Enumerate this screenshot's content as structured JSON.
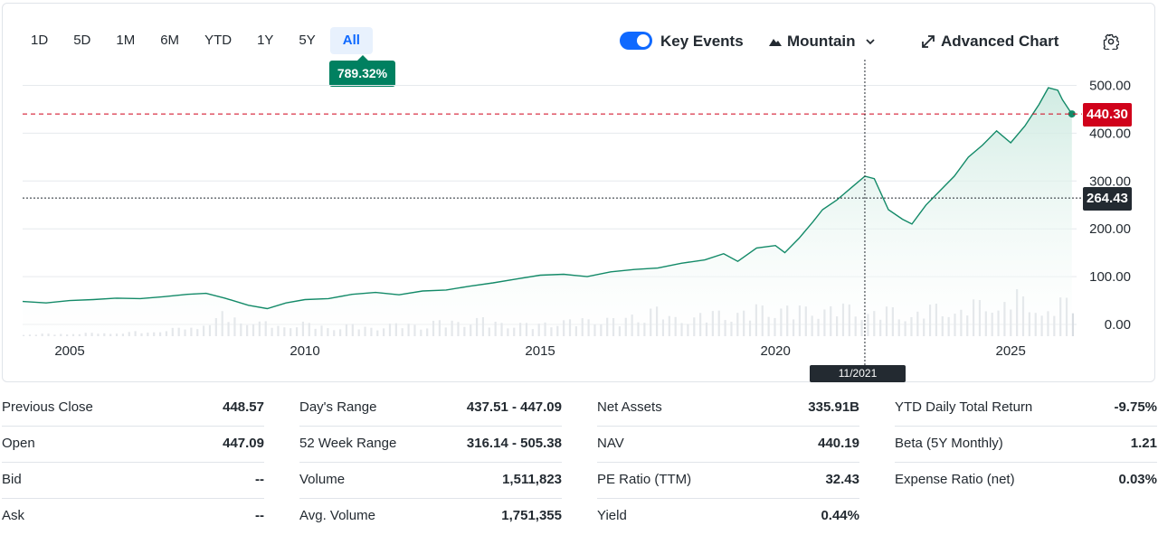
{
  "range_tabs": [
    "1D",
    "5D",
    "1M",
    "6M",
    "YTD",
    "1Y",
    "5Y",
    "All"
  ],
  "active_range": "All",
  "change_badge": "789.32%",
  "toolbar": {
    "key_events_label": "Key Events",
    "key_events_on": true,
    "chart_type_label": "Mountain",
    "advanced_chart_label": "Advanced Chart"
  },
  "colors": {
    "line": "#138a68",
    "area_fill": "#d7eee7",
    "accent": "#0f69ff",
    "last_price_tag": "#d0021b",
    "crosshair_tag": "#232a31",
    "badge": "#008060"
  },
  "price_tags": {
    "last_price": "440.30",
    "crosshair_price": "264.43"
  },
  "crosshair_date": "11/2021",
  "chart_data": {
    "type": "area",
    "title": "",
    "xlabel": "",
    "ylabel": "",
    "x_ticks": [
      "2005",
      "2010",
      "2015",
      "2020",
      "2025"
    ],
    "y_ticks": [
      "0.00",
      "100.00",
      "200.00",
      "300.00",
      "400.00",
      "500.00"
    ],
    "ylim": [
      0,
      520
    ],
    "xlim": [
      2004.0,
      2026.4
    ],
    "grid": true,
    "reference_lines": [
      {
        "label": "440.30",
        "value": 440.3,
        "style": "dashed",
        "color": "#d0021b"
      },
      {
        "label": "264.43",
        "value": 264.43,
        "style": "dotted",
        "color": "#232a31"
      }
    ],
    "series": [
      {
        "x": [
          2004.0,
          2004.5,
          2005.0,
          2005.5,
          2006.0,
          2006.5,
          2007.0,
          2007.5,
          2007.9,
          2008.3,
          2008.8,
          2009.2,
          2009.6,
          2010.0,
          2010.5,
          2011.0,
          2011.5,
          2012.0,
          2012.5,
          2013.0,
          2013.5,
          2014.0,
          2014.5,
          2015.0,
          2015.5,
          2016.0,
          2016.5,
          2017.0,
          2017.5,
          2018.0,
          2018.5,
          2018.9,
          2019.2,
          2019.6,
          2020.0,
          2020.2,
          2020.5,
          2020.8,
          2021.0,
          2021.3,
          2021.6,
          2021.9,
          2022.1,
          2022.4,
          2022.7,
          2022.9,
          2023.2,
          2023.5,
          2023.8,
          2024.1,
          2024.4,
          2024.7,
          2025.0,
          2025.3,
          2025.6,
          2025.8,
          2026.0,
          2026.1,
          2026.3
        ],
        "values": [
          48,
          45,
          50,
          52,
          55,
          54,
          58,
          63,
          65,
          55,
          40,
          33,
          45,
          52,
          54,
          63,
          67,
          62,
          70,
          72,
          80,
          87,
          95,
          103,
          105,
          100,
          110,
          115,
          118,
          128,
          135,
          148,
          132,
          160,
          165,
          150,
          180,
          215,
          240,
          260,
          285,
          310,
          305,
          240,
          220,
          210,
          250,
          280,
          310,
          350,
          375,
          405,
          380,
          415,
          460,
          495,
          490,
          470,
          440.3
        ]
      }
    ],
    "volume": {
      "type": "bar",
      "note_units": "relative",
      "values": [
        3,
        3,
        4,
        4,
        5,
        5,
        6,
        8,
        10,
        14,
        22,
        30,
        24,
        18,
        16,
        18,
        16,
        14,
        15,
        14,
        16,
        18,
        16,
        20,
        22,
        24,
        20,
        18,
        17,
        20,
        22,
        24,
        26,
        24,
        30,
        40,
        26,
        28,
        32,
        34,
        36,
        40,
        44,
        38,
        42,
        44,
        40,
        38,
        36,
        34,
        38,
        40,
        42,
        44,
        50,
        56,
        48,
        42,
        46
      ]
    }
  },
  "stats": [
    [
      {
        "label": "Previous Close",
        "value": "448.57"
      },
      {
        "label": "Open",
        "value": "447.09"
      },
      {
        "label": "Bid",
        "value": "--"
      },
      {
        "label": "Ask",
        "value": "--"
      }
    ],
    [
      {
        "label": "Day's Range",
        "value": "437.51 - 447.09"
      },
      {
        "label": "52 Week Range",
        "value": "316.14 - 505.38"
      },
      {
        "label": "Volume",
        "value": "1,511,823"
      },
      {
        "label": "Avg. Volume",
        "value": "1,751,355"
      }
    ],
    [
      {
        "label": "Net Assets",
        "value": "335.91B"
      },
      {
        "label": "NAV",
        "value": "440.19"
      },
      {
        "label": "PE Ratio (TTM)",
        "value": "32.43"
      },
      {
        "label": "Yield",
        "value": "0.44%"
      }
    ],
    [
      {
        "label": "YTD Daily Total Return",
        "value": "-9.75%"
      },
      {
        "label": "Beta (5Y Monthly)",
        "value": "1.21"
      },
      {
        "label": "Expense Ratio (net)",
        "value": "0.03%"
      }
    ]
  ]
}
